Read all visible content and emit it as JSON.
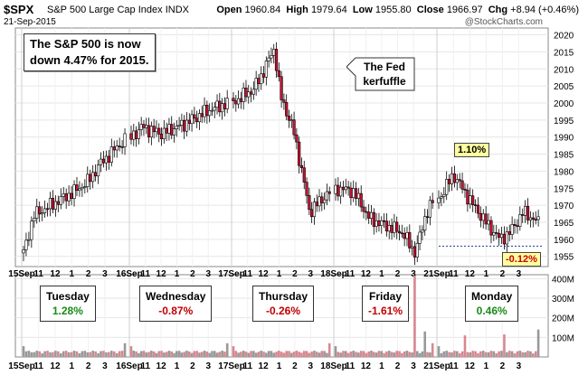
{
  "header": {
    "symbol": "$SPX",
    "name": "S&P 500 Large Cap Index",
    "exchange": "INDX",
    "date": "21-Sep-2015",
    "open_label": "Open",
    "open": "1960.84",
    "high_label": "High",
    "high": "1979.64",
    "low_label": "Low",
    "low": "1955.80",
    "close_label": "Close",
    "close": "1966.97",
    "chg_label": "Chg",
    "chg": "+8.94 (+0.46%)",
    "watermark": "@StockCharts.com"
  },
  "annotations": {
    "note_line1": "The S&P 500 is now",
    "note_line2": "down 4.47% for 2015.",
    "fed_line1": "The Fed",
    "fed_line2": "kerfuffle",
    "high_tag": "1.10%",
    "low_tag": "-0.12%"
  },
  "days": [
    {
      "name": "Tuesday",
      "change": "1.28%",
      "sign": "pos"
    },
    {
      "name": "Wednesday",
      "change": "-0.87%",
      "sign": "neg"
    },
    {
      "name": "Thursday",
      "change": "-0.26%",
      "sign": "neg"
    },
    {
      "name": "Friday",
      "change": "-1.61%",
      "sign": "neg"
    },
    {
      "name": "Monday",
      "change": "0.46%",
      "sign": "pos"
    }
  ],
  "chart_data": {
    "type": "candlestick",
    "y_ticks": [
      1955,
      1960,
      1965,
      1970,
      1975,
      1980,
      1985,
      1990,
      1995,
      2000,
      2005,
      2010,
      2015,
      2020
    ],
    "ylim": [
      1952,
      2022
    ],
    "volume_ticks": [
      "400M",
      "300M",
      "200M",
      "100M"
    ],
    "volume_lim": [
      0,
      420
    ],
    "x_tick_labels": [
      "15Sep",
      "11",
      "12",
      "1",
      "2",
      "3",
      "16Sep",
      "11",
      "12",
      "1",
      "2",
      "3",
      "17Sep",
      "11",
      "12",
      "1",
      "2",
      "3",
      "18Sep",
      "11",
      "12",
      "1",
      "2",
      "3",
      "21Sep",
      "11",
      "12",
      "1",
      "2",
      "3"
    ],
    "bars_per_day": 39,
    "price_colors": {
      "up": "#ffffff",
      "down": "#cc1133",
      "outline": "#000000"
    },
    "volume_colors": {
      "up": "#999999",
      "down": "#d88890"
    },
    "reference_line": 1958
  }
}
